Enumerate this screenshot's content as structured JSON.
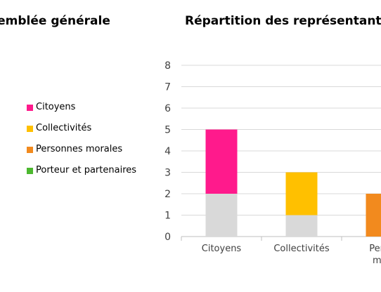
{
  "left_title": "semblée générale",
  "chart_data": {
    "type": "bar",
    "stacked": true,
    "title": "Répartition des représentant.e.",
    "categories": [
      "Citoyens",
      "Collectivités",
      "Perso morale"
    ],
    "category_label_lines": [
      [
        "Citoyens"
      ],
      [
        "Collectivités"
      ],
      [
        "Perso",
        "mor"
      ]
    ],
    "series": [
      {
        "values": [
          2,
          1,
          0
        ],
        "color": "#d9d9d9"
      },
      {
        "name": "Citoyens",
        "values": [
          3,
          0,
          0
        ],
        "color": "#ff1a8c"
      },
      {
        "name": "Collectivités",
        "values": [
          0,
          2,
          0
        ],
        "color": "#ffc000"
      },
      {
        "name": "Personnes morales",
        "values": [
          0,
          0,
          2
        ],
        "color": "#f28a1e"
      },
      {
        "name": "Porteur et partenaires",
        "values": [
          0,
          0,
          0
        ],
        "color": "#4cb82f"
      }
    ],
    "legend": [
      {
        "label": "Citoyens",
        "color": "#ff1a8c"
      },
      {
        "label": "Collectivités",
        "color": "#ffc000"
      },
      {
        "label": "Personnes morales",
        "color": "#f28a1e"
      },
      {
        "label": "Porteur et partenaires",
        "color": "#4cb82f"
      }
    ],
    "legend_position": "left",
    "ylim": [
      0,
      8
    ],
    "yticks": [
      0,
      1,
      2,
      3,
      4,
      5,
      6,
      7,
      8
    ],
    "grid": true,
    "gridline_color": "#d9d9d9"
  }
}
